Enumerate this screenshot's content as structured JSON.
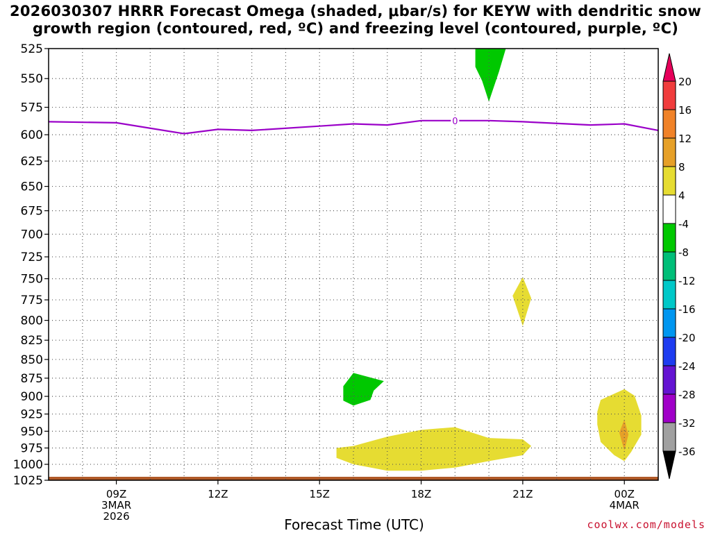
{
  "title": {
    "line1": "2026030307 HRRR Forecast Omega (shaded, μbar/s) for KEYW with dendritic snow",
    "line2": "growth region (contoured, red, ºC) and freezing level (contoured, purple, ºC)"
  },
  "credit": "coolwx.com/models",
  "chart_data": {
    "type": "contour",
    "xlabel": "Forecast Time (UTC)",
    "x_ticks": [
      {
        "h": 9,
        "lines": [
          "09Z",
          "3MAR",
          "2026"
        ]
      },
      {
        "h": 12,
        "lines": [
          "12Z"
        ]
      },
      {
        "h": 15,
        "lines": [
          "15Z"
        ]
      },
      {
        "h": 18,
        "lines": [
          "18Z"
        ]
      },
      {
        "h": 21,
        "lines": [
          "21Z"
        ]
      },
      {
        "h": 24,
        "lines": [
          "00Z",
          "4MAR"
        ]
      }
    ],
    "xlim_hours": [
      7,
      25
    ],
    "ylabel": "",
    "y_ticks": [
      525,
      550,
      575,
      600,
      625,
      650,
      675,
      700,
      725,
      750,
      775,
      800,
      825,
      850,
      875,
      900,
      925,
      950,
      975,
      1000,
      1025
    ],
    "ylim_hPa": [
      525,
      1025
    ],
    "y_scale": "log-pressure",
    "grid": true,
    "freezing_level": {
      "label": "0",
      "color": "#9a00c8",
      "points": [
        [
          7,
          588
        ],
        [
          9,
          589
        ],
        [
          11,
          599
        ],
        [
          12,
          595
        ],
        [
          13,
          596
        ],
        [
          15,
          592
        ],
        [
          16,
          590
        ],
        [
          17,
          591
        ],
        [
          18,
          587
        ],
        [
          19,
          587
        ],
        [
          20,
          587
        ],
        [
          21,
          588
        ],
        [
          23,
          591
        ],
        [
          24,
          590
        ],
        [
          25,
          596
        ]
      ]
    },
    "omega_regions": [
      {
        "value_range": "-8 to -4",
        "color": "#00c800",
        "points": [
          [
            19.6,
            525
          ],
          [
            20.5,
            525
          ],
          [
            20.3,
            544
          ],
          [
            20.0,
            570
          ],
          [
            19.8,
            552
          ],
          [
            19.6,
            540
          ]
        ]
      },
      {
        "value_range": "-8 to -4",
        "color": "#00c800",
        "points": [
          [
            15.7,
            886
          ],
          [
            16.0,
            868
          ],
          [
            16.9,
            879
          ],
          [
            16.6,
            892
          ],
          [
            16.5,
            905
          ],
          [
            16.0,
            913
          ],
          [
            15.7,
            906
          ]
        ]
      },
      {
        "value_range": "4 to 8",
        "color": "#e6dc32",
        "points": [
          [
            20.7,
            770
          ],
          [
            21.0,
            748
          ],
          [
            21.25,
            773
          ],
          [
            21.0,
            807
          ]
        ]
      },
      {
        "value_range": "4 to 8",
        "color": "#e6dc32",
        "points": [
          [
            15.5,
            975
          ],
          [
            16.0,
            972
          ],
          [
            17.0,
            958
          ],
          [
            18.0,
            948
          ],
          [
            19.0,
            944
          ],
          [
            20.0,
            960
          ],
          [
            21.0,
            962
          ],
          [
            21.25,
            972
          ],
          [
            21.0,
            986
          ],
          [
            20.0,
            995
          ],
          [
            19.0,
            1005
          ],
          [
            18.0,
            1010
          ],
          [
            17.0,
            1010
          ],
          [
            16.0,
            1000
          ],
          [
            15.5,
            990
          ]
        ]
      },
      {
        "value_range": "4 to 8",
        "color": "#e6dc32",
        "points": [
          [
            23.3,
            905
          ],
          [
            24.0,
            890
          ],
          [
            24.3,
            899
          ],
          [
            24.5,
            927
          ],
          [
            24.5,
            955
          ],
          [
            24.2,
            981
          ],
          [
            24.0,
            995
          ],
          [
            23.7,
            986
          ],
          [
            23.3,
            966
          ],
          [
            23.2,
            940
          ],
          [
            23.2,
            922
          ]
        ]
      },
      {
        "value_range": "8 to 12",
        "color": "#e6a028",
        "points": [
          [
            23.85,
            952
          ],
          [
            24.0,
            933
          ],
          [
            24.12,
            955
          ],
          [
            24.0,
            979
          ]
        ]
      }
    ],
    "ground_color": "#b05a28",
    "colorbar": {
      "labels": [
        "20",
        "16",
        "12",
        "8",
        "4",
        "-4",
        "-8",
        "-12",
        "-16",
        "-20",
        "-24",
        "-28",
        "-32",
        "-36"
      ],
      "colors": [
        "#e6005a",
        "#f03c3c",
        "#f08228",
        "#e6a028",
        "#e6dc32",
        "#ffffff",
        "#00c800",
        "#00be78",
        "#00c8c8",
        "#0096f0",
        "#1e3cf0",
        "#6414d2",
        "#a000c8",
        "#a0a0a0",
        "#000000"
      ]
    }
  }
}
